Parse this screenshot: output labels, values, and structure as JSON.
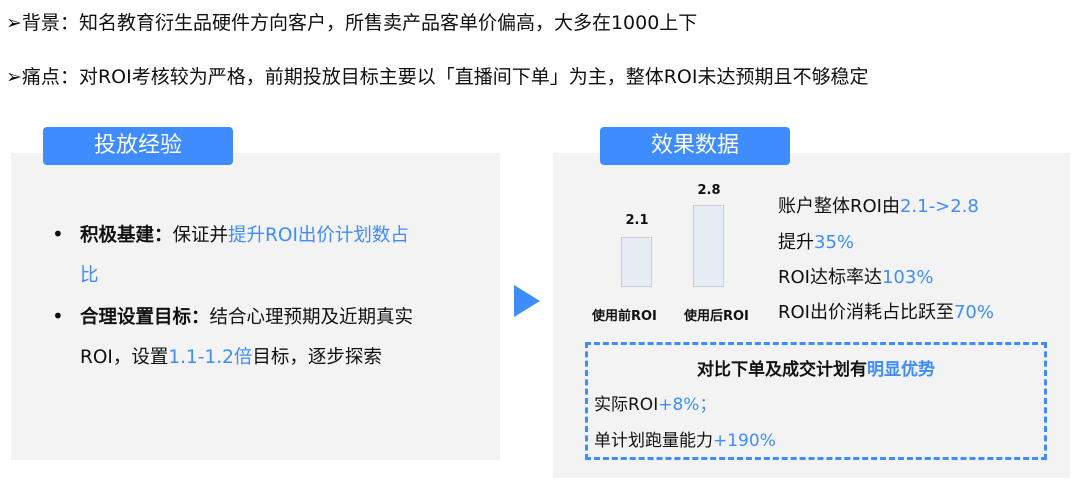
{
  "background": {
    "label": "背景",
    "text": "：知名教育衍生品硬件方向客户，所售卖产品客单价偏高，大多在1000上下"
  },
  "pain": {
    "label": "痛点",
    "text": "：对ROI考核较为严格，前期投放目标主要以「直播间下单」为主，整体ROI未达预期且不够稳定"
  },
  "left": {
    "title": "投放经验",
    "item1": {
      "bold": "积极基建：",
      "plain": "保证并",
      "blue": "提升ROI出价计划数占比"
    },
    "item2": {
      "bold": "合理设置目标：",
      "plain": "结合心理预期及近期真实ROI，设置",
      "blue": "1.1-1.2倍",
      "tail": "目标，逐步探索"
    }
  },
  "right": {
    "title": "效果数据",
    "lines": [
      {
        "plain": "账户整体ROI由",
        "blue": "2.1->2.8"
      },
      {
        "plain": "提升",
        "blue": "35%"
      },
      {
        "plain": "ROI达标率达",
        "blue": "103%"
      },
      {
        "plain": "ROI出价消耗占比跃至",
        "blue": "70%"
      }
    ],
    "box": {
      "title": "对比下单及成交计划有",
      "title_blue": "明显优势",
      "l1": "实际ROI",
      "l1_blue": "+8%；",
      "l2": "单计划跑量能力",
      "l2_blue": "+190%"
    }
  },
  "chart_data": {
    "type": "bar",
    "categories": [
      "使用前ROI",
      "使用后ROI"
    ],
    "values": [
      2.1,
      2.8
    ],
    "labels": [
      "2.1",
      "2.8"
    ]
  },
  "colors": {
    "accent": "#3f8cff",
    "panel": "#f3f3f3"
  }
}
